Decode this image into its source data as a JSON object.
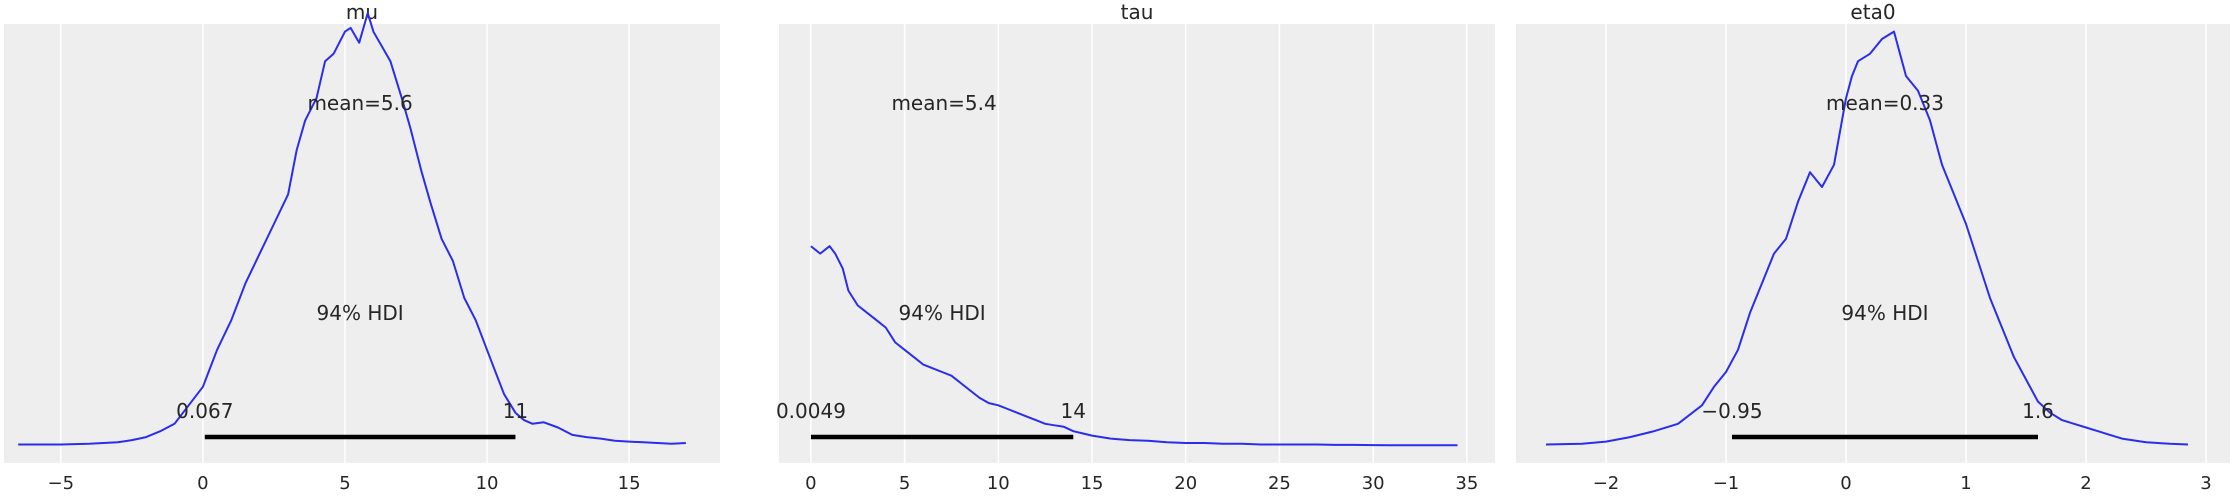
{
  "figure": {
    "background": "#ffffff",
    "axes_background": "#eeeeee",
    "grid_color": "#ffffff",
    "curve_color": "#2a2eec",
    "hdi_color": "#000000"
  },
  "chart_data": [
    {
      "type": "line",
      "title": "mu",
      "xlim": [
        -7,
        18.2
      ],
      "xticks": [
        -5,
        0,
        5,
        10,
        15
      ],
      "xtick_labels": [
        "−5",
        "0",
        "5",
        "10",
        "15"
      ],
      "mean_label": "mean=5.6",
      "hdi_label": "94% HDI",
      "hdi": [
        0.067,
        11
      ],
      "hdi_labels": [
        "0.067",
        "11"
      ],
      "x": [
        -6.5,
        -5,
        -4,
        -3,
        -2.5,
        -2,
        -1.5,
        -1,
        -0.5,
        0,
        0.5,
        1,
        1.5,
        2,
        2.5,
        3,
        3.3,
        3.6,
        4,
        4.3,
        4.6,
        5,
        5.2,
        5.5,
        5.8,
        6,
        6.3,
        6.6,
        7,
        7.3,
        7.7,
        8,
        8.4,
        8.8,
        9.2,
        9.6,
        10,
        10.3,
        10.6,
        11,
        11.3,
        11.6,
        12,
        12.5,
        13,
        13.5,
        14,
        14.5,
        15,
        15.5,
        16,
        16.5,
        17
      ],
      "y": [
        0.002,
        0.002,
        0.003,
        0.005,
        0.008,
        0.012,
        0.02,
        0.03,
        0.055,
        0.08,
        0.13,
        0.17,
        0.22,
        0.26,
        0.3,
        0.34,
        0.4,
        0.44,
        0.47,
        0.52,
        0.53,
        0.56,
        0.565,
        0.545,
        0.585,
        0.56,
        0.54,
        0.52,
        0.47,
        0.43,
        0.37,
        0.33,
        0.28,
        0.25,
        0.2,
        0.17,
        0.13,
        0.1,
        0.07,
        0.045,
        0.035,
        0.03,
        0.032,
        0.025,
        0.015,
        0.012,
        0.01,
        0.007,
        0.006,
        0.005,
        0.004,
        0.003,
        0.004
      ]
    },
    {
      "type": "line",
      "title": "tau",
      "xlim": [
        -1.7,
        36.5
      ],
      "xticks": [
        0,
        5,
        10,
        15,
        20,
        25,
        30,
        35
      ],
      "xtick_labels": [
        "0",
        "5",
        "10",
        "15",
        "20",
        "25",
        "30",
        "35"
      ],
      "mean_label": "mean=5.4",
      "hdi_label": "94% HDI",
      "hdi": [
        0.0049,
        14
      ],
      "hdi_labels": [
        "0.0049",
        "14"
      ],
      "x": [
        0,
        0.5,
        1,
        1.3,
        1.7,
        2,
        2.5,
        3,
        3.5,
        4,
        4.5,
        5,
        5.5,
        6,
        6.5,
        7,
        7.5,
        8,
        8.5,
        9,
        9.5,
        10,
        10.5,
        11,
        11.5,
        12,
        12.5,
        13,
        13.5,
        14,
        14.5,
        15,
        16,
        17,
        18,
        19,
        20,
        21,
        22,
        23,
        24,
        25,
        26,
        27,
        28,
        29,
        30,
        31,
        32,
        33,
        34,
        34.5
      ],
      "y": [
        0.27,
        0.26,
        0.27,
        0.26,
        0.24,
        0.21,
        0.19,
        0.18,
        0.17,
        0.16,
        0.14,
        0.13,
        0.12,
        0.11,
        0.105,
        0.1,
        0.095,
        0.085,
        0.075,
        0.065,
        0.058,
        0.055,
        0.05,
        0.045,
        0.04,
        0.035,
        0.03,
        0.028,
        0.026,
        0.02,
        0.017,
        0.014,
        0.01,
        0.008,
        0.007,
        0.005,
        0.004,
        0.004,
        0.003,
        0.003,
        0.002,
        0.002,
        0.002,
        0.002,
        0.0015,
        0.0015,
        0.0012,
        0.001,
        0.001,
        0.001,
        0.001,
        0.001
      ]
    },
    {
      "type": "line",
      "title": "eta0",
      "xlim": [
        -2.75,
        3.2
      ],
      "xticks": [
        -2,
        -1,
        0,
        1,
        2,
        3
      ],
      "xtick_labels": [
        "−2",
        "−1",
        "0",
        "1",
        "2",
        "3"
      ],
      "mean_label": "mean=0.33",
      "hdi_label": "94% HDI",
      "hdi": [
        -0.95,
        1.6
      ],
      "hdi_labels": [
        "−0.95",
        "1.6"
      ],
      "x": [
        -2.5,
        -2.2,
        -2,
        -1.8,
        -1.6,
        -1.4,
        -1.2,
        -1.1,
        -1,
        -0.9,
        -0.8,
        -0.7,
        -0.6,
        -0.5,
        -0.4,
        -0.3,
        -0.2,
        -0.1,
        0,
        0.05,
        0.1,
        0.2,
        0.3,
        0.4,
        0.5,
        0.6,
        0.7,
        0.8,
        0.9,
        1,
        1.1,
        1.2,
        1.3,
        1.4,
        1.5,
        1.6,
        1.7,
        1.8,
        1.9,
        2,
        2.1,
        2.2,
        2.3,
        2.5,
        2.7,
        2.85
      ],
      "y": [
        0.002,
        0.003,
        0.006,
        0.012,
        0.02,
        0.03,
        0.055,
        0.08,
        0.1,
        0.13,
        0.18,
        0.22,
        0.26,
        0.28,
        0.33,
        0.37,
        0.35,
        0.38,
        0.47,
        0.5,
        0.52,
        0.53,
        0.55,
        0.56,
        0.5,
        0.48,
        0.44,
        0.38,
        0.34,
        0.3,
        0.25,
        0.2,
        0.16,
        0.12,
        0.09,
        0.06,
        0.045,
        0.035,
        0.03,
        0.025,
        0.02,
        0.015,
        0.01,
        0.005,
        0.003,
        0.002
      ]
    }
  ]
}
